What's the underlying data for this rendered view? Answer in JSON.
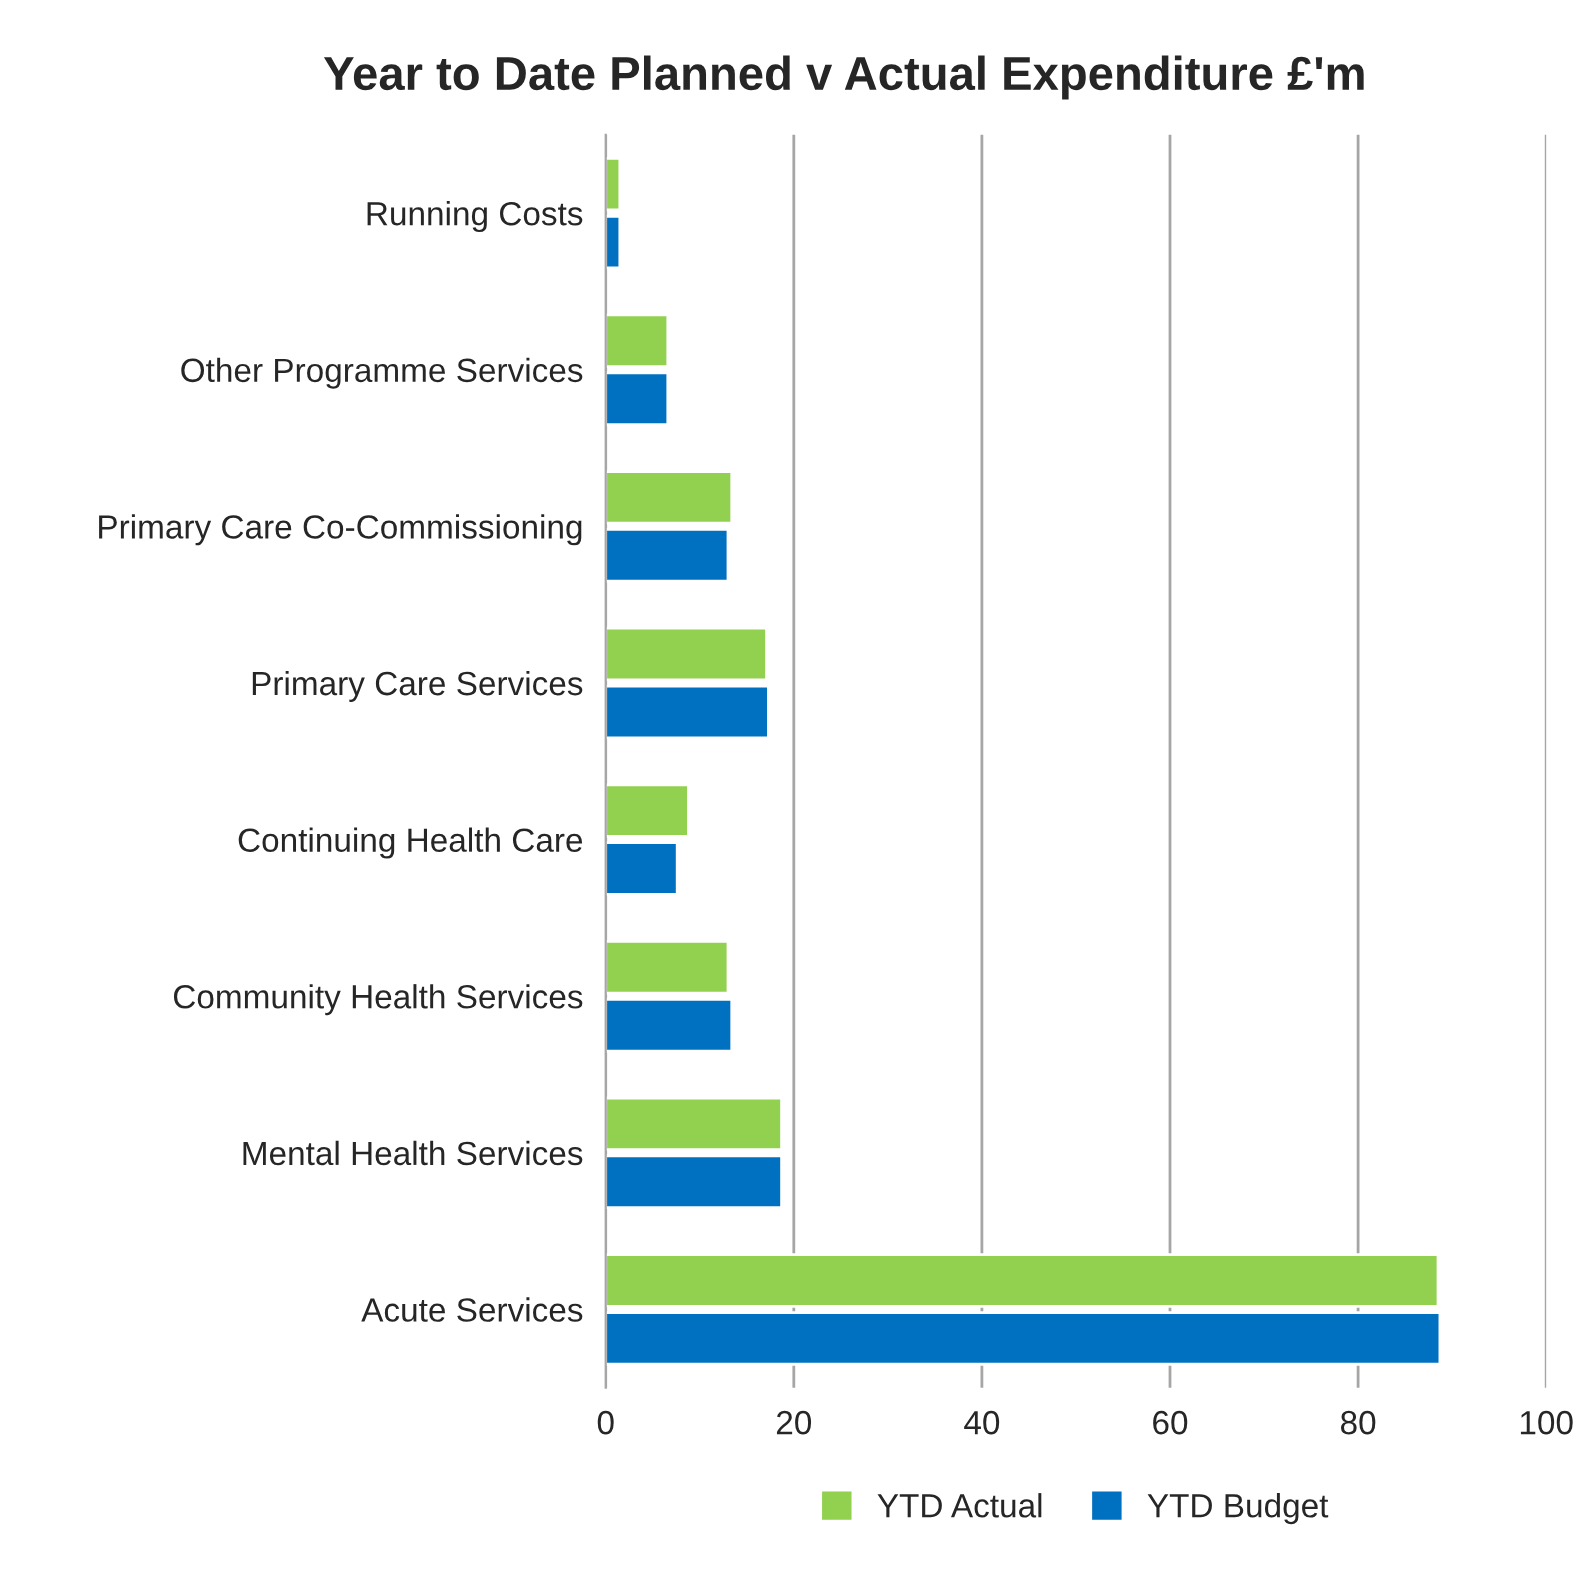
{
  "chart_data": {
    "type": "bar",
    "orientation": "horizontal",
    "title": "Year to Date Planned v Actual Expenditure £'m",
    "categories": [
      "Running Costs",
      "Other Programme Services",
      "Primary Care Co-Commissioning",
      "Primary Care Services",
      "Continuing Health Care",
      "Community Health Services",
      "Mental Health Services",
      "Acute Services"
    ],
    "series": [
      {
        "name": "YTD Actual",
        "color": "#92d050",
        "values": [
          1.5,
          6.6,
          13.4,
          17.1,
          8.8,
          13.0,
          18.7,
          88.5
        ]
      },
      {
        "name": "YTD Budget",
        "color": "#0070c0",
        "values": [
          1.5,
          6.6,
          13.0,
          17.3,
          7.6,
          13.4,
          18.7,
          88.7
        ]
      }
    ],
    "xlim": [
      0,
      100
    ],
    "xticks": [
      0,
      20,
      40,
      60,
      80,
      100
    ],
    "grid": "x",
    "legend": "bottom"
  }
}
